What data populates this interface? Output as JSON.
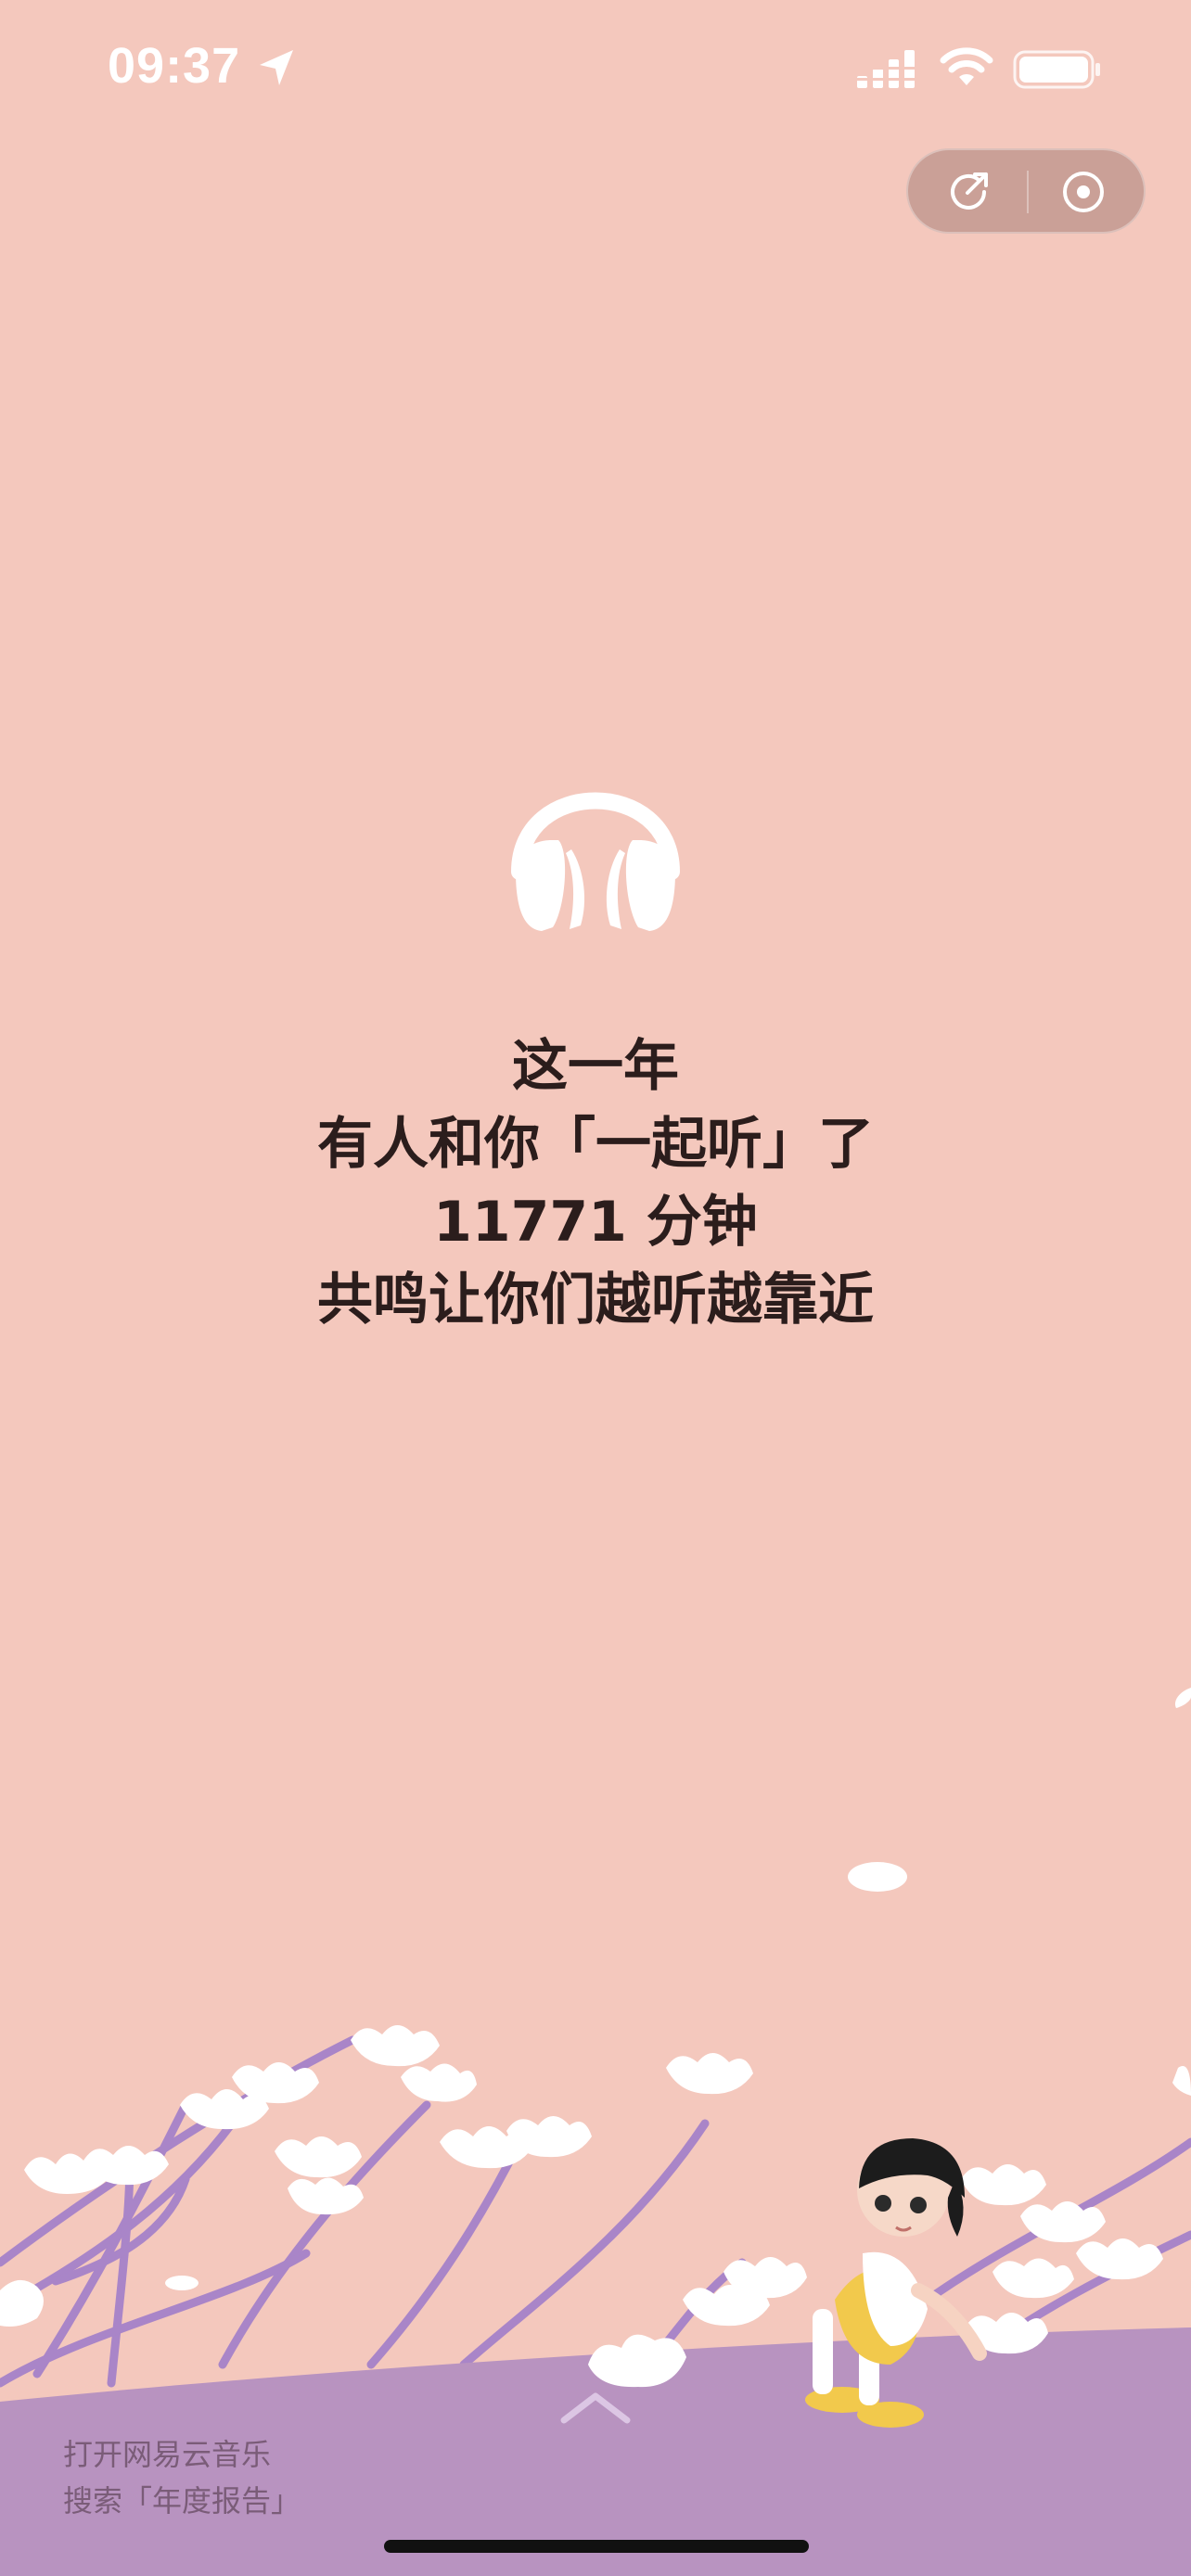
{
  "status_bar": {
    "time": "09:37",
    "location_icon": "location-arrow-icon",
    "signal_icon": "cellular-signal-icon",
    "wifi_icon": "wifi-icon",
    "battery_icon": "battery-icon"
  },
  "capsule": {
    "share_icon": "share-icon",
    "close_icon": "target-close-icon"
  },
  "hero_icon": "headphones-icon",
  "message": {
    "line1": "这一年",
    "line2": "有人和你「一起听」了",
    "line3": "11771 分钟",
    "line4": "共鸣让你们越听越靠近"
  },
  "footer": {
    "line1": "打开网易云音乐",
    "line2": "搜索「年度报告」"
  },
  "colors": {
    "background": "#f4c8bd",
    "ground": "#b893c0",
    "branches": "#a985c8",
    "flowers": "#ffffff",
    "text": "#2b1d1c"
  }
}
